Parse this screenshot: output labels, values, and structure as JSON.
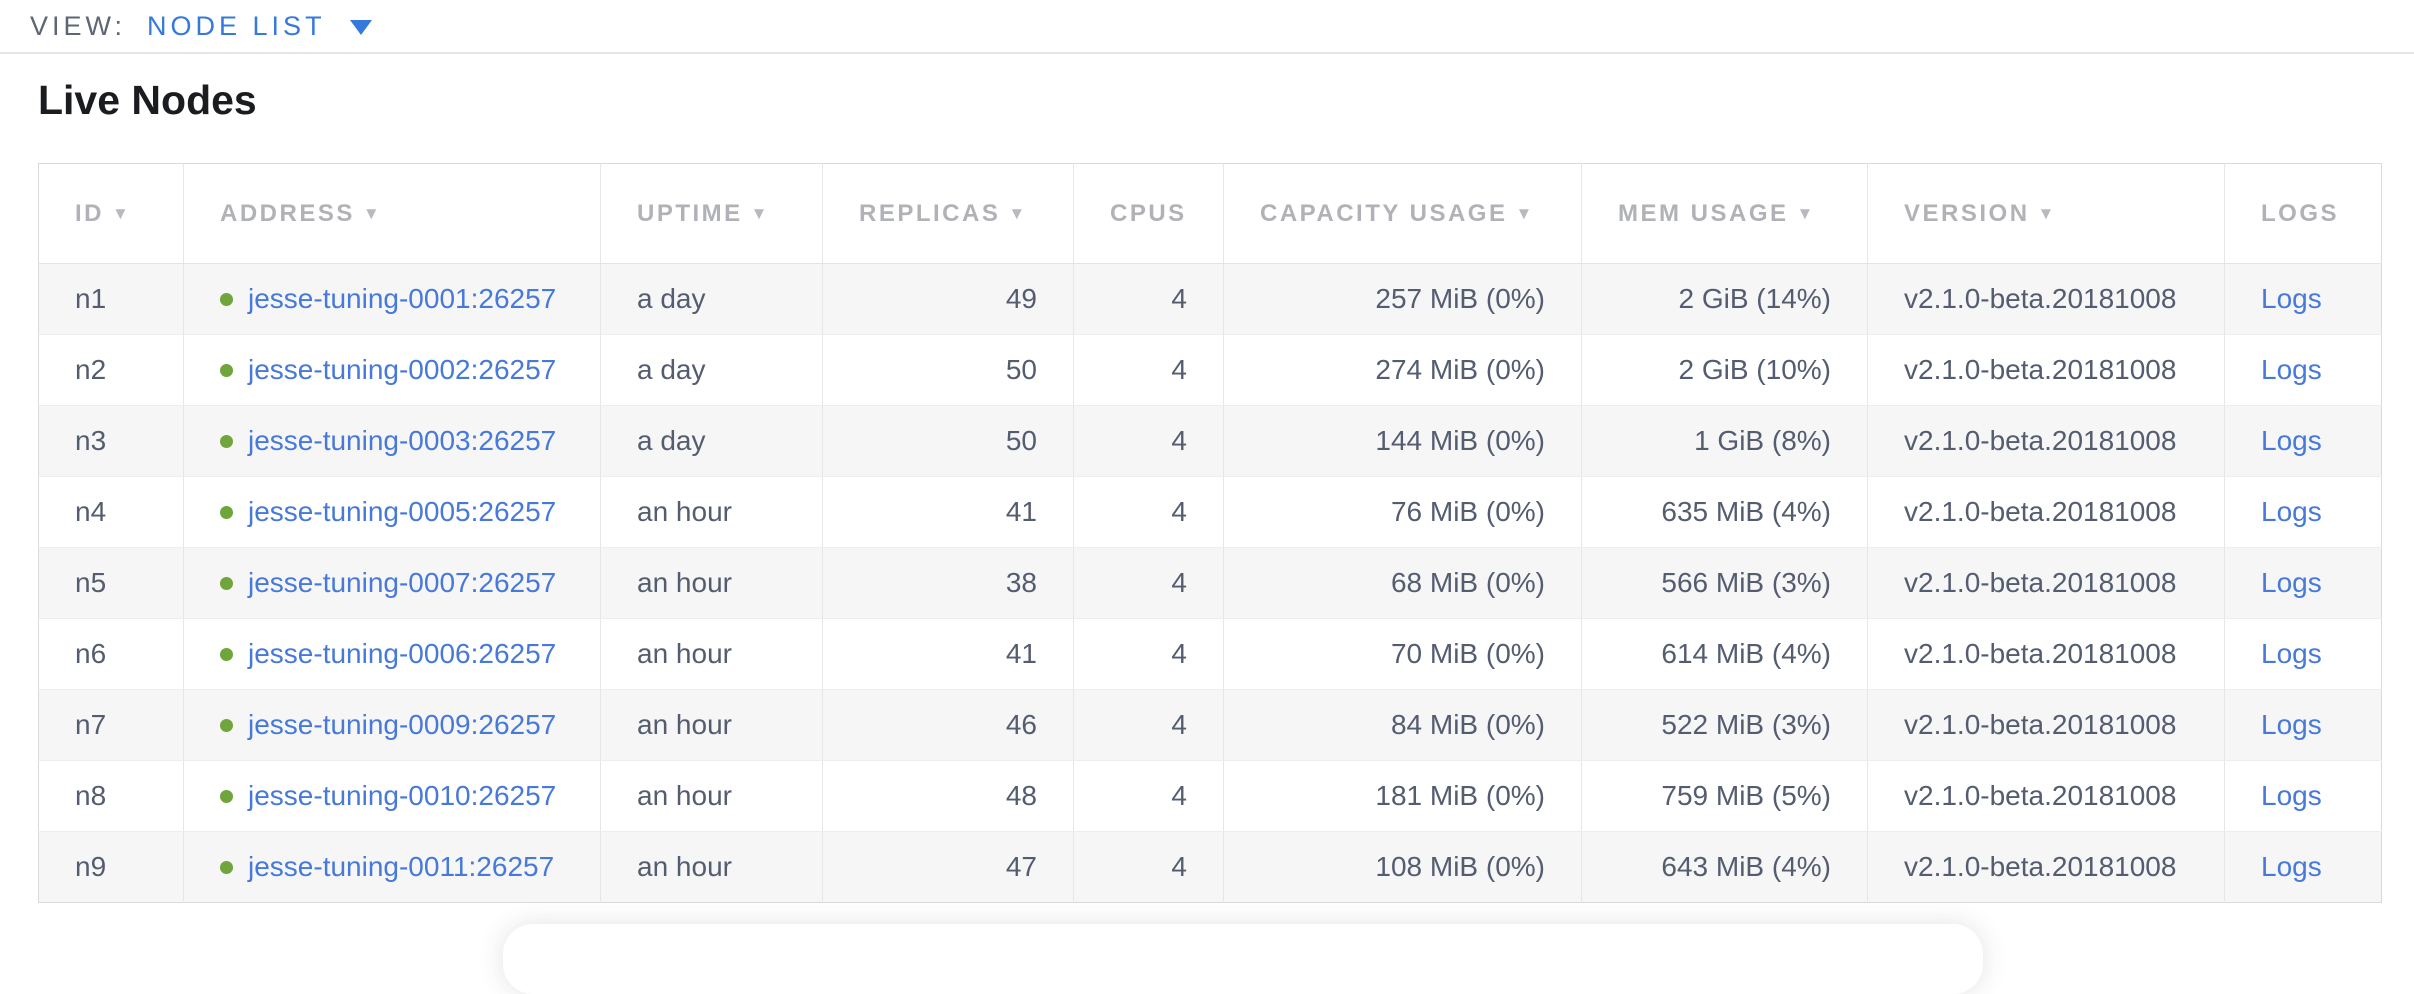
{
  "topbar": {
    "view_label": "VIEW:",
    "view_value": "NODE LIST"
  },
  "page": {
    "title": "Live Nodes"
  },
  "table": {
    "sort_indicator": "▼",
    "columns": [
      {
        "label": "ID",
        "key": "id",
        "sortable": true,
        "align": "left"
      },
      {
        "label": "ADDRESS",
        "key": "address",
        "sortable": true,
        "align": "left"
      },
      {
        "label": "UPTIME",
        "key": "uptime",
        "sortable": true,
        "align": "left"
      },
      {
        "label": "REPLICAS",
        "key": "replicas",
        "sortable": true,
        "align": "right"
      },
      {
        "label": "CPUS",
        "key": "cpus",
        "sortable": false,
        "align": "right"
      },
      {
        "label": "CAPACITY USAGE",
        "key": "capacity_usage",
        "sortable": true,
        "align": "right"
      },
      {
        "label": "MEM USAGE",
        "key": "mem_usage",
        "sortable": true,
        "align": "right"
      },
      {
        "label": "VERSION",
        "key": "version",
        "sortable": true,
        "align": "left"
      },
      {
        "label": "LOGS",
        "key": "logs",
        "sortable": false,
        "align": "left"
      }
    ],
    "rows": [
      {
        "id": "n1",
        "status": "live",
        "address": "jesse-tuning-0001:26257",
        "uptime": "a day",
        "replicas": "49",
        "cpus": "4",
        "capacity_usage": "257 MiB (0%)",
        "mem_usage": "2 GiB (14%)",
        "version": "v2.1.0-beta.20181008",
        "logs": "Logs"
      },
      {
        "id": "n2",
        "status": "live",
        "address": "jesse-tuning-0002:26257",
        "uptime": "a day",
        "replicas": "50",
        "cpus": "4",
        "capacity_usage": "274 MiB (0%)",
        "mem_usage": "2 GiB (10%)",
        "version": "v2.1.0-beta.20181008",
        "logs": "Logs"
      },
      {
        "id": "n3",
        "status": "live",
        "address": "jesse-tuning-0003:26257",
        "uptime": "a day",
        "replicas": "50",
        "cpus": "4",
        "capacity_usage": "144 MiB (0%)",
        "mem_usage": "1 GiB (8%)",
        "version": "v2.1.0-beta.20181008",
        "logs": "Logs"
      },
      {
        "id": "n4",
        "status": "live",
        "address": "jesse-tuning-0005:26257",
        "uptime": "an hour",
        "replicas": "41",
        "cpus": "4",
        "capacity_usage": "76 MiB (0%)",
        "mem_usage": "635 MiB (4%)",
        "version": "v2.1.0-beta.20181008",
        "logs": "Logs"
      },
      {
        "id": "n5",
        "status": "live",
        "address": "jesse-tuning-0007:26257",
        "uptime": "an hour",
        "replicas": "38",
        "cpus": "4",
        "capacity_usage": "68 MiB (0%)",
        "mem_usage": "566 MiB (3%)",
        "version": "v2.1.0-beta.20181008",
        "logs": "Logs"
      },
      {
        "id": "n6",
        "status": "live",
        "address": "jesse-tuning-0006:26257",
        "uptime": "an hour",
        "replicas": "41",
        "cpus": "4",
        "capacity_usage": "70 MiB (0%)",
        "mem_usage": "614 MiB (4%)",
        "version": "v2.1.0-beta.20181008",
        "logs": "Logs"
      },
      {
        "id": "n7",
        "status": "live",
        "address": "jesse-tuning-0009:26257",
        "uptime": "an hour",
        "replicas": "46",
        "cpus": "4",
        "capacity_usage": "84 MiB (0%)",
        "mem_usage": "522 MiB (3%)",
        "version": "v2.1.0-beta.20181008",
        "logs": "Logs"
      },
      {
        "id": "n8",
        "status": "live",
        "address": "jesse-tuning-0010:26257",
        "uptime": "an hour",
        "replicas": "48",
        "cpus": "4",
        "capacity_usage": "181 MiB (0%)",
        "mem_usage": "759 MiB (5%)",
        "version": "v2.1.0-beta.20181008",
        "logs": "Logs"
      },
      {
        "id": "n9",
        "status": "live",
        "address": "jesse-tuning-0011:26257",
        "uptime": "an hour",
        "replicas": "47",
        "cpus": "4",
        "capacity_usage": "108 MiB (0%)",
        "mem_usage": "643 MiB (4%)",
        "version": "v2.1.0-beta.20181008",
        "logs": "Logs"
      }
    ]
  },
  "colors": {
    "accent_blue": "#3578de",
    "link_blue": "#4679d9",
    "status_green": "#6fa53b",
    "header_gray": "#b1b2b7",
    "cell_text": "#545c70",
    "row_stripe": "#f6f6f7"
  }
}
